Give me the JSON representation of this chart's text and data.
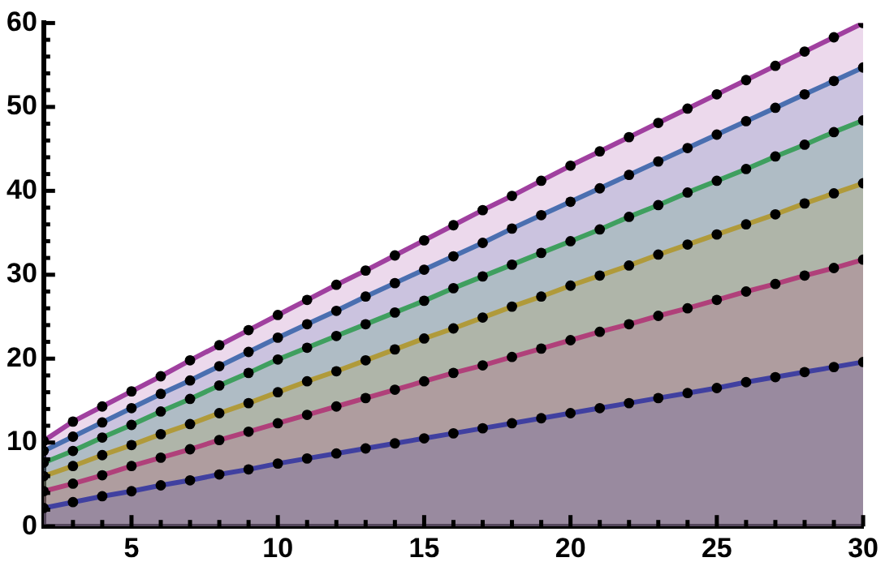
{
  "chart_data": {
    "type": "area",
    "x": [
      2,
      3,
      4,
      5,
      6,
      7,
      8,
      9,
      10,
      11,
      12,
      13,
      14,
      15,
      16,
      17,
      18,
      19,
      20,
      21,
      22,
      23,
      24,
      25,
      26,
      27,
      28,
      29,
      30
    ],
    "series": [
      {
        "color": "#4040a0",
        "values": [
          2.2,
          2.9,
          3.6,
          4.2,
          4.9,
          5.5,
          6.2,
          6.8,
          7.5,
          8.1,
          8.7,
          9.3,
          9.9,
          10.5,
          11.1,
          11.7,
          12.3,
          12.9,
          13.5,
          14.1,
          14.7,
          15.3,
          15.9,
          16.5,
          17.2,
          17.8,
          18.4,
          19.0,
          19.6
        ]
      },
      {
        "color": "#b0407a",
        "values": [
          4.2,
          5.1,
          6.1,
          7.2,
          8.2,
          9.2,
          10.3,
          11.3,
          12.3,
          13.3,
          14.3,
          15.3,
          16.3,
          17.3,
          18.3,
          19.2,
          20.2,
          21.2,
          22.2,
          23.2,
          24.1,
          25.1,
          26.0,
          27.0,
          28.0,
          28.9,
          29.9,
          30.8,
          31.8
        ]
      },
      {
        "color": "#b09a3a",
        "values": [
          6.0,
          7.2,
          8.5,
          9.7,
          11.0,
          12.2,
          13.5,
          14.7,
          16.0,
          17.3,
          18.5,
          19.8,
          21.1,
          22.4,
          23.6,
          24.9,
          26.2,
          27.4,
          28.7,
          29.9,
          31.1,
          32.4,
          33.6,
          34.8,
          36.0,
          37.2,
          38.5,
          39.7,
          40.9
        ]
      },
      {
        "color": "#3f9f5f",
        "values": [
          7.6,
          9.0,
          10.6,
          12.1,
          13.7,
          15.2,
          16.8,
          18.3,
          19.9,
          21.3,
          22.7,
          24.1,
          25.5,
          26.9,
          28.4,
          29.8,
          31.2,
          32.6,
          34.0,
          35.4,
          36.9,
          38.3,
          39.8,
          41.2,
          42.6,
          44.1,
          45.5,
          47.0,
          48.4
        ]
      },
      {
        "color": "#4a6fb0",
        "values": [
          9.0,
          10.7,
          12.4,
          14.1,
          15.8,
          17.4,
          19.1,
          20.8,
          22.5,
          24.1,
          25.7,
          27.4,
          29.0,
          30.6,
          32.2,
          33.8,
          35.5,
          37.1,
          38.7,
          40.3,
          41.9,
          43.5,
          45.1,
          46.7,
          48.3,
          49.9,
          51.5,
          53.1,
          54.7
        ]
      },
      {
        "color": "#a0409f",
        "values": [
          10.2,
          12.5,
          14.3,
          16.1,
          17.9,
          19.8,
          21.6,
          23.4,
          25.2,
          27.0,
          28.8,
          30.5,
          32.3,
          34.1,
          35.9,
          37.7,
          39.4,
          41.2,
          43.0,
          44.7,
          46.4,
          48.1,
          49.8,
          51.5,
          53.2,
          54.9,
          56.6,
          58.3,
          60.0
        ]
      }
    ],
    "xlim": [
      2,
      30
    ],
    "xticks": [
      {
        "value": 3,
        "label": null
      },
      {
        "value": 4,
        "label": null
      },
      5,
      {
        "value": 6,
        "label": null
      },
      {
        "value": 7,
        "label": null
      },
      {
        "value": 8,
        "label": null
      },
      {
        "value": 9,
        "label": null
      },
      10,
      {
        "value": 11,
        "label": null
      },
      {
        "value": 12,
        "label": null
      },
      {
        "value": 13,
        "label": null
      },
      {
        "value": 14,
        "label": null
      },
      15,
      {
        "value": 16,
        "label": null
      },
      {
        "value": 17,
        "label": null
      },
      {
        "value": 18,
        "label": null
      },
      {
        "value": 19,
        "label": null
      },
      20,
      {
        "value": 21,
        "label": null
      },
      {
        "value": 22,
        "label": null
      },
      {
        "value": 23,
        "label": null
      },
      {
        "value": 24,
        "label": null
      },
      25,
      {
        "value": 26,
        "label": null
      },
      {
        "value": 27,
        "label": null
      },
      {
        "value": 28,
        "label": null
      },
      {
        "value": 29,
        "label": null
      },
      30
    ],
    "ylim": [
      0,
      60
    ],
    "yticks": [
      0,
      {
        "value": 2,
        "label": null
      },
      {
        "value": 4,
        "label": null
      },
      {
        "value": 6,
        "label": null
      },
      {
        "value": 8,
        "label": null
      },
      10,
      {
        "value": 12,
        "label": null
      },
      {
        "value": 14,
        "label": null
      },
      {
        "value": 16,
        "label": null
      },
      {
        "value": 18,
        "label": null
      },
      20,
      {
        "value": 22,
        "label": null
      },
      {
        "value": 24,
        "label": null
      },
      {
        "value": 26,
        "label": null
      },
      {
        "value": 28,
        "label": null
      },
      30,
      {
        "value": 32,
        "label": null
      },
      {
        "value": 34,
        "label": null
      },
      {
        "value": 36,
        "label": null
      },
      {
        "value": 38,
        "label": null
      },
      40,
      {
        "value": 42,
        "label": null
      },
      {
        "value": 44,
        "label": null
      },
      {
        "value": 46,
        "label": null
      },
      {
        "value": 48,
        "label": null
      },
      50,
      {
        "value": 52,
        "label": null
      },
      {
        "value": 54,
        "label": null
      },
      {
        "value": 56,
        "label": null
      },
      {
        "value": 58,
        "label": null
      },
      60
    ],
    "grid": false,
    "legend": false,
    "marker": "circle"
  }
}
